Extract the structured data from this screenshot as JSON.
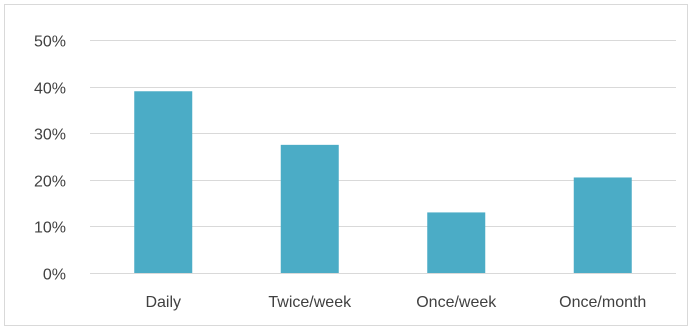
{
  "chart_data": {
    "type": "bar",
    "categories": [
      "Daily",
      "Twice/week",
      "Once/week",
      "Once/month"
    ],
    "values": [
      39,
      27.5,
      13,
      20.5
    ],
    "value_format": "percent",
    "ylim": [
      0,
      50
    ],
    "y_ticks": [
      0,
      10,
      20,
      30,
      40,
      50
    ],
    "y_tick_labels": [
      "0%",
      "10%",
      "20%",
      "30%",
      "40%",
      "50%"
    ],
    "grid": true,
    "legend": "none",
    "bar_color": "#4bacc6",
    "title": "",
    "xlabel": "",
    "ylabel": ""
  }
}
